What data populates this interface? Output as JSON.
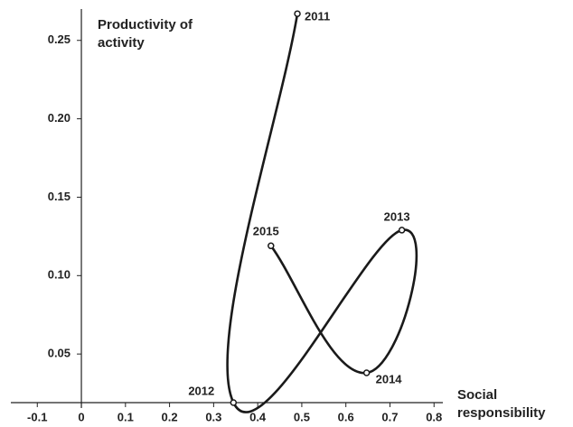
{
  "chart_data": {
    "type": "line",
    "x_label": "Social responsibility",
    "y_label": "Productivity of activity",
    "series": [
      {
        "color": "#1a1a1a",
        "x": [
          0.49,
          0.345,
          0.727,
          0.647,
          0.43
        ],
        "values": [
          0.267,
          0.019,
          0.129,
          0.038,
          0.119
        ],
        "labels": [
          "2011",
          "2012",
          "2013",
          "2014",
          "2015"
        ]
      }
    ],
    "xlim": [
      -0.16,
      0.82
    ],
    "ylim": [
      0.019,
      0.27
    ],
    "xticks": [
      -0.1,
      0,
      0.1,
      0.2,
      0.3,
      0.4,
      0.5,
      0.6,
      0.7,
      0.8
    ],
    "yticks": [
      0.05,
      {
        "value": 0.1,
        "label": "0.10"
      },
      0.15,
      {
        "value": 0.2,
        "label": "0.20"
      },
      0.25
    ]
  }
}
